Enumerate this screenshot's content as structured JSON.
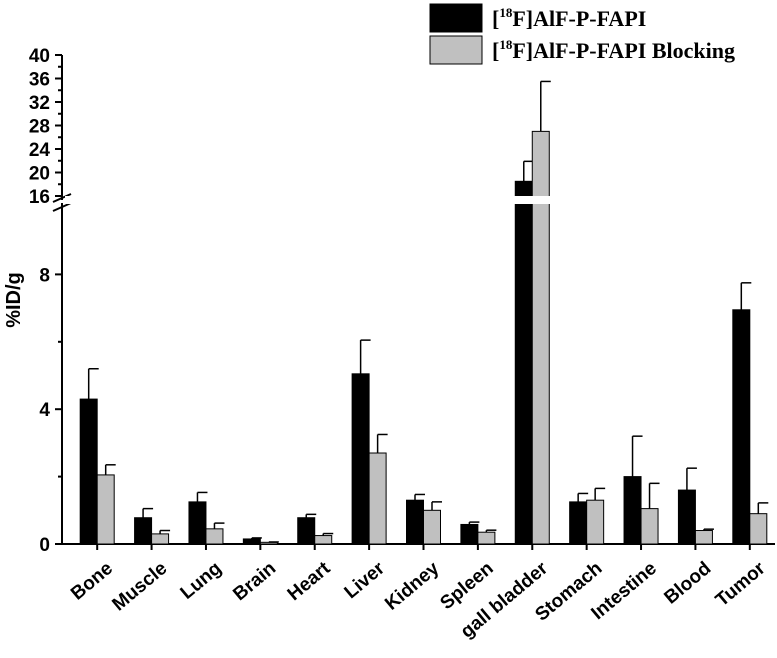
{
  "chart_data": {
    "type": "bar",
    "ylabel": "%ID/g",
    "categories": [
      "Bone",
      "Muscle",
      "Lung",
      "Brain",
      "Heart",
      "Liver",
      "Kidney",
      "Spleen",
      "gall bladder",
      "Stomach",
      "Intestine",
      "Blood",
      "Tumor"
    ],
    "y_axis_lower": {
      "range": [
        0,
        10
      ],
      "ticks": [
        0,
        4,
        8
      ]
    },
    "y_axis_upper": {
      "range": [
        16,
        40
      ],
      "ticks": [
        16,
        20,
        24,
        28,
        32,
        36,
        40
      ]
    },
    "axis_break": [
      10,
      16
    ],
    "legend_position": "top-right",
    "series": [
      {
        "name": "AlF-P-FAPI",
        "name_sup": "18",
        "name_prefix": "[",
        "name_suffix": "F]AlF-P-FAPI",
        "color": "#000000",
        "values": [
          4.3,
          0.78,
          1.25,
          0.15,
          0.78,
          5.05,
          1.3,
          0.58,
          18.5,
          1.25,
          2.0,
          1.6,
          6.95
        ],
        "errors": [
          0.9,
          0.27,
          0.28,
          0.03,
          0.1,
          1.0,
          0.17,
          0.07,
          3.4,
          0.25,
          1.2,
          0.65,
          0.8
        ]
      },
      {
        "name": "AlF-P-FAPI Blocking",
        "name_sup": "18",
        "name_prefix": "[",
        "name_suffix": "F]AlF-P-FAPI Blocking",
        "color": "#c0c0c0",
        "values": [
          2.05,
          0.3,
          0.45,
          0.05,
          0.25,
          2.7,
          1.0,
          0.35,
          27.0,
          1.3,
          1.05,
          0.4,
          0.9
        ],
        "errors": [
          0.3,
          0.1,
          0.17,
          0.01,
          0.06,
          0.55,
          0.25,
          0.06,
          8.5,
          0.35,
          0.75,
          0.04,
          0.32
        ]
      }
    ]
  }
}
